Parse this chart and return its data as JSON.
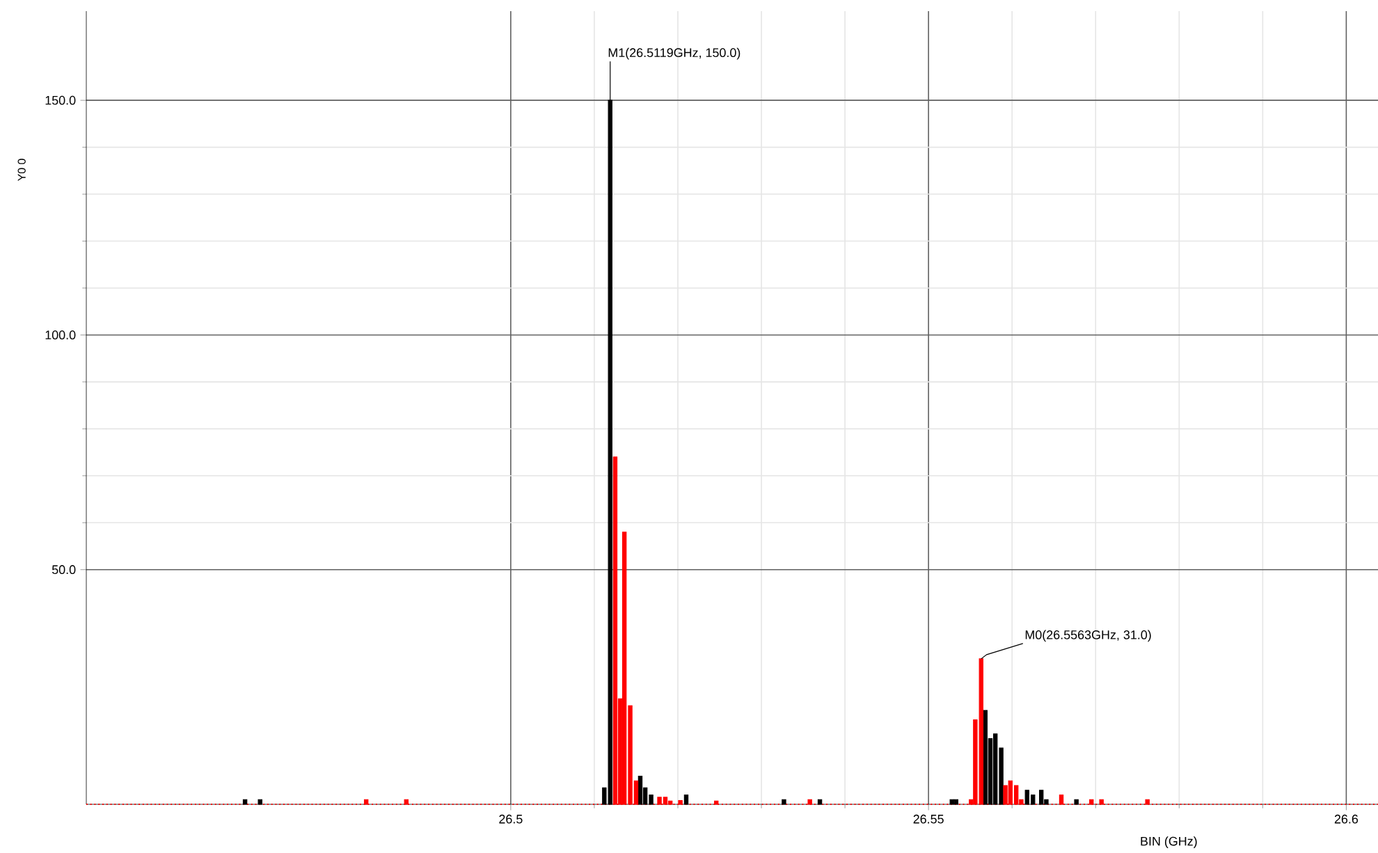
{
  "chart_data": {
    "type": "bar",
    "xlabel": "BIN (GHz)",
    "ylabel": "Y0 0",
    "xlim": [
      26.4492,
      26.6038
    ],
    "ylim": [
      0,
      169
    ],
    "xticks": [
      26.5,
      26.55,
      26.6
    ],
    "yticks": [
      {
        "value": 50,
        "label": "50.0"
      },
      {
        "value": 100,
        "label": "100.0"
      },
      {
        "value": 150,
        "label": "150.0"
      }
    ],
    "grid": true,
    "series": [
      {
        "color": "#000000",
        "x": [
          26.4682,
          26.47,
          26.5112,
          26.5119,
          26.5155,
          26.5161,
          26.5168,
          26.521,
          26.5327,
          26.537,
          26.5528,
          26.5533,
          26.5568,
          26.5574,
          26.558,
          26.5587,
          26.5618,
          26.5625,
          26.5635,
          26.5641,
          26.5677
        ],
        "values": [
          1,
          1,
          3.5,
          150,
          6,
          3.5,
          2,
          2,
          1,
          1,
          1,
          1,
          20,
          14,
          15,
          12,
          3,
          2,
          3,
          1,
          1
        ]
      },
      {
        "color": "#ff0000",
        "x": [
          26.4827,
          26.4875,
          26.5125,
          26.5131,
          26.5136,
          26.5143,
          26.515,
          26.5178,
          26.5185,
          26.5191,
          26.5203,
          26.5246,
          26.5358,
          26.5551,
          26.5556,
          26.5563,
          26.5592,
          26.5598,
          26.5605,
          26.5611,
          26.5659,
          26.5695,
          26.5707,
          26.5762
        ],
        "values": [
          1,
          1,
          74,
          22.5,
          58,
          21,
          5,
          1.5,
          1.5,
          0.7,
          0.8,
          0.7,
          1,
          1,
          18,
          31,
          4,
          5,
          4,
          1,
          2,
          1,
          1,
          1
        ]
      }
    ],
    "ref_lines": [
      {
        "axis": "y",
        "value": 0,
        "color": "#ff0000",
        "line_style": "dotted"
      }
    ],
    "annotations": [
      {
        "text": "M1(26.5119GHz, 150.0)",
        "x": 26.5119,
        "y": 150
      },
      {
        "text": "M0(26.5563GHz, 31.0)",
        "x": 26.5563,
        "y": 31
      }
    ]
  }
}
